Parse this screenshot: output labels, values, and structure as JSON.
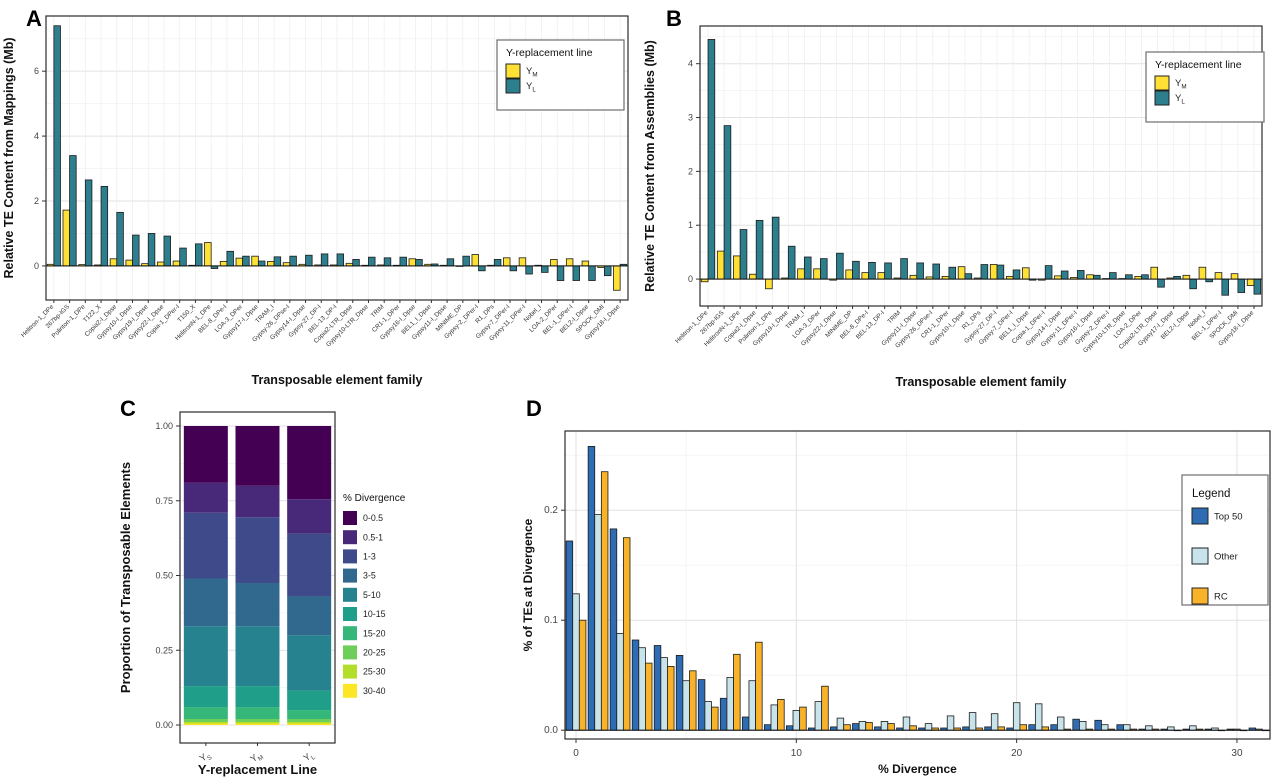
{
  "panels": {
    "a": {
      "label": "A"
    },
    "b": {
      "label": "B"
    },
    "c": {
      "label": "C"
    },
    "d": {
      "label": "D"
    }
  },
  "colors": {
    "ym_yellow": "#ffe135",
    "yl_teal": "#2d7f8e",
    "top50_blue": "#2e6db4",
    "other_lightblue": "#c9e3ea",
    "rc_orange": "#f9b32b"
  },
  "chart_data": [
    {
      "id": "A",
      "type": "bar",
      "xlabel": "Transposable element family",
      "ylabel": "Relative TE Content from Mappings (Mb)",
      "ylim": [
        -1.05,
        7.7
      ],
      "yticks": [
        {
          "v": 0,
          "label": "0"
        },
        {
          "v": 2,
          "label": "2"
        },
        {
          "v": 4,
          "label": "4"
        },
        {
          "v": 6,
          "label": "6"
        }
      ],
      "legend": {
        "title": "Y-replacement line",
        "entries": [
          {
            "base": "Y",
            "sub": "M",
            "color": "#ffe135"
          },
          {
            "base": "Y",
            "sub": "L",
            "color": "#2d7f8e"
          }
        ]
      },
      "categories": [
        "Helitron-1_DPe",
        "267bp-IGS",
        "Polinton-1_DPe",
        "T122_X",
        "Copia2-I_Dpse",
        "Gypsy10-I_Dpse",
        "Gypsy19-I_Dpse",
        "Gypsy22-I_Dpse",
        "Copia-1_DPer-I",
        "T150_X",
        "HelitronN-1_DPe",
        "BEL-8_DPe-I",
        "LOA-3_DPer",
        "Gypsy17-I_Dpse",
        "TRAM_I",
        "Gypsy-26_DPse-I",
        "Gypsy14-I_Dpse",
        "Gypsy-27_DP-I",
        "BEL-13_DP-I",
        "Copia2-LTR_Dpse",
        "Gypsy10-LTR_Dpse",
        "TRIM",
        "CR1-1_DPer",
        "Gypsy16-I_Dpse",
        "BEL1_I_Dpse",
        "Gypsy11-I_Dpse",
        "MINIME_DP",
        "Gypsy-2_DPer-I",
        "R1_DPs",
        "Gypsy-7_DPer-I",
        "Gypsy-11_DPer-I",
        "Nobel_I",
        "LOA-2_DPer",
        "BEL-1_DPer-I",
        "BEL2-I_Dpse",
        "SPOCK_DMI",
        "Gypsy18-I_Dpse"
      ],
      "series": [
        {
          "name": "Y_M",
          "color": "#ffe135",
          "values": [
            0.05,
            1.72,
            0.04,
            0.03,
            0.22,
            0.18,
            0.07,
            0.12,
            0.15,
            0.02,
            0.72,
            0.14,
            0.24,
            0.3,
            0.14,
            0.1,
            0.05,
            0.03,
            0.03,
            0.08,
            0.02,
            0.03,
            0.02,
            0.22,
            0.05,
            0.02,
            0.0,
            0.35,
            0.02,
            0.25,
            0.25,
            0.02,
            0.2,
            0.22,
            0.15,
            -0.05,
            -0.75
          ]
        },
        {
          "name": "Y_L",
          "color": "#2d7f8e",
          "values": [
            7.4,
            3.4,
            2.65,
            2.45,
            1.65,
            0.95,
            1.0,
            0.92,
            0.55,
            0.68,
            -0.08,
            0.45,
            0.3,
            0.15,
            0.28,
            0.3,
            0.33,
            0.37,
            0.37,
            0.2,
            0.27,
            0.25,
            0.27,
            0.2,
            0.06,
            0.22,
            0.3,
            -0.15,
            0.2,
            -0.15,
            -0.25,
            -0.2,
            -0.45,
            -0.45,
            -0.45,
            -0.3,
            0.05
          ]
        }
      ]
    },
    {
      "id": "B",
      "type": "bar",
      "xlabel": "Transposable element family",
      "ylabel": "Relative TE Content from Assemblies (Mb)",
      "ylim": [
        -0.5,
        4.7
      ],
      "yticks": [
        {
          "v": 0,
          "label": "0"
        },
        {
          "v": 1,
          "label": "1"
        },
        {
          "v": 2,
          "label": "2"
        },
        {
          "v": 3,
          "label": "3"
        },
        {
          "v": 4,
          "label": "4"
        }
      ],
      "legend": {
        "title": "Y-replacement line",
        "entries": [
          {
            "base": "Y",
            "sub": "M",
            "color": "#ffe135"
          },
          {
            "base": "Y",
            "sub": "L",
            "color": "#2d7f8e"
          }
        ]
      },
      "categories": [
        "Helitron-1_DPe",
        "267bp-IGS",
        "HelitronN-1_DPe",
        "Copia2-I_Dpse",
        "Polinton-1_DPe",
        "Gypsy19-I_Dpse",
        "TRAM_I",
        "LOA-3_DPer",
        "Gypsy22-I_Dpse",
        "MINIME_DP",
        "BEL-8_DPe-I",
        "BEL-13_DP-I",
        "TRIM",
        "Gypsy11-I_Dpse",
        "Gypsy-26_DPse-I",
        "CR1-1_DPer",
        "Gypsy10-I_Dpse",
        "R1_DPs",
        "Gypsy-27_DP-I",
        "Gypsy-7_DPer-I",
        "BEL1_I_Dpse",
        "Copia-1_DPer-I",
        "Gypsy14-I_Dpse",
        "Gypsy-11_DPer-I",
        "Gypsy16-I_Dpse",
        "Gypsy-2_DPer-I",
        "Gypsy10-LTR_Dpse",
        "LOA-2_DPer",
        "Copia2-LTR_Dpse",
        "Gypsy17-I_Dpse",
        "BEL2-I_Dpse",
        "Nobel_I",
        "BEL-1_DPer-I",
        "SPOCK_DMi",
        "Gypsy18-I_Dpse"
      ],
      "series": [
        {
          "name": "Y_M",
          "color": "#ffe135",
          "values": [
            -0.05,
            0.52,
            0.43,
            0.09,
            -0.18,
            0.02,
            0.19,
            0.19,
            -0.02,
            0.17,
            0.12,
            0.12,
            0.02,
            0.07,
            0.04,
            0.05,
            0.23,
            0.02,
            0.27,
            0.05,
            0.21,
            -0.02,
            0.06,
            0.03,
            0.08,
            0.01,
            0.01,
            0.05,
            0.22,
            0.02,
            0.07,
            0.22,
            0.12,
            0.1,
            -0.12
          ]
        },
        {
          "name": "Y_L",
          "color": "#2d7f8e",
          "values": [
            4.45,
            2.85,
            0.92,
            1.09,
            1.15,
            0.61,
            0.41,
            0.38,
            0.48,
            0.33,
            0.31,
            0.3,
            0.38,
            0.3,
            0.28,
            0.22,
            0.1,
            0.27,
            0.26,
            0.17,
            -0.02,
            0.25,
            0.15,
            0.16,
            0.07,
            0.12,
            0.08,
            0.08,
            -0.15,
            0.05,
            -0.18,
            -0.05,
            -0.3,
            -0.25,
            -0.28
          ]
        }
      ]
    },
    {
      "id": "C",
      "type": "stacked_bar",
      "xlabel": "Y-replacement Line",
      "ylabel": "Proportion of Transposable Elements",
      "yticks": [
        {
          "v": 0,
          "label": "0.00"
        },
        {
          "v": 0.25,
          "label": "0.25"
        },
        {
          "v": 0.5,
          "label": "0.50"
        },
        {
          "v": 0.75,
          "label": "0.75"
        },
        {
          "v": 1,
          "label": "1.00"
        }
      ],
      "categories": [
        {
          "base": "Y",
          "sub": "S"
        },
        {
          "base": "Y",
          "sub": "M"
        },
        {
          "base": "Y",
          "sub": "L"
        }
      ],
      "legend_title": "% Divergence",
      "bins": [
        {
          "label": "0-0.5",
          "color": "#440154"
        },
        {
          "label": "0.5-1",
          "color": "#482878"
        },
        {
          "label": "1-3",
          "color": "#3e4a89"
        },
        {
          "label": "3-5",
          "color": "#31688e"
        },
        {
          "label": "5-10",
          "color": "#26828e"
        },
        {
          "label": "10-15",
          "color": "#1f9e89"
        },
        {
          "label": "15-20",
          "color": "#35b779"
        },
        {
          "label": "20-25",
          "color": "#6dce59"
        },
        {
          "label": "25-30",
          "color": "#b4de2c"
        },
        {
          "label": "30-40",
          "color": "#fde725"
        }
      ],
      "values": [
        [
          0.19,
          0.2,
          0.245
        ],
        [
          0.1,
          0.105,
          0.115
        ],
        [
          0.22,
          0.22,
          0.21
        ],
        [
          0.16,
          0.145,
          0.13
        ],
        [
          0.2,
          0.2,
          0.185
        ],
        [
          0.07,
          0.07,
          0.065
        ],
        [
          0.04,
          0.04,
          0.03
        ],
        [
          0.01,
          0.01,
          0.01
        ],
        [
          0.005,
          0.005,
          0.005
        ],
        [
          0.005,
          0.005,
          0.005
        ]
      ]
    },
    {
      "id": "D",
      "type": "bar",
      "xlabel": "% Divergence",
      "ylabel": "% of TEs at Divergence",
      "ylim": [
        -0.008,
        0.272
      ],
      "yticks": [
        {
          "v": 0,
          "label": "0.0"
        },
        {
          "v": 0.1,
          "label": "0.1"
        },
        {
          "v": 0.2,
          "label": "0.2"
        }
      ],
      "xticks": [
        {
          "v": 0,
          "label": "0"
        },
        {
          "v": 10,
          "label": "10"
        },
        {
          "v": 20,
          "label": "20"
        },
        {
          "v": 30,
          "label": "30"
        }
      ],
      "legend": {
        "title": "Legend",
        "entries": [
          {
            "base": "Top 50",
            "color": "#2e6db4"
          },
          {
            "base": "Other",
            "color": "#c9e3ea"
          },
          {
            "base": "RC",
            "color": "#f9b32b"
          }
        ]
      },
      "categories": [
        0,
        1,
        2,
        3,
        4,
        5,
        6,
        7,
        8,
        9,
        10,
        11,
        12,
        13,
        14,
        15,
        16,
        17,
        18,
        19,
        20,
        21,
        22,
        23,
        24,
        25,
        26,
        27,
        28,
        29,
        30,
        31
      ],
      "series": [
        {
          "name": "Top 50",
          "color": "#2e6db4",
          "values": [
            0.172,
            0.258,
            0.183,
            0.082,
            0.077,
            0.068,
            0.046,
            0.029,
            0.012,
            0.005,
            0.004,
            0.002,
            0.003,
            0.006,
            0.003,
            0.002,
            0.002,
            0.002,
            0.003,
            0.003,
            0.002,
            0.005,
            0.005,
            0.01,
            0.009,
            0.005,
            0.001,
            0.001,
            0.001,
            0.001,
            0.001,
            0.002
          ]
        },
        {
          "name": "Other",
          "color": "#c9e3ea",
          "values": [
            0.124,
            0.196,
            0.088,
            0.075,
            0.066,
            0.045,
            0.026,
            0.048,
            0.045,
            0.023,
            0.018,
            0.026,
            0.011,
            0.008,
            0.008,
            0.012,
            0.006,
            0.013,
            0.016,
            0.015,
            0.025,
            0.024,
            0.012,
            0.008,
            0.005,
            0.005,
            0.004,
            0.003,
            0.004,
            0.002,
            0.001,
            0.001
          ]
        },
        {
          "name": "RC",
          "color": "#f9b32b",
          "values": [
            0.1,
            0.235,
            0.175,
            0.061,
            0.058,
            0.054,
            0.021,
            0.069,
            0.08,
            0.028,
            0.021,
            0.04,
            0.005,
            0.007,
            0.006,
            0.004,
            0.002,
            0.002,
            0.002,
            0.003,
            0.005,
            0.003,
            0.001,
            0.001,
            0.001,
            0.001,
            0.001,
            0.0,
            0.001,
            0.0,
            0.0,
            0.0
          ]
        }
      ]
    }
  ]
}
